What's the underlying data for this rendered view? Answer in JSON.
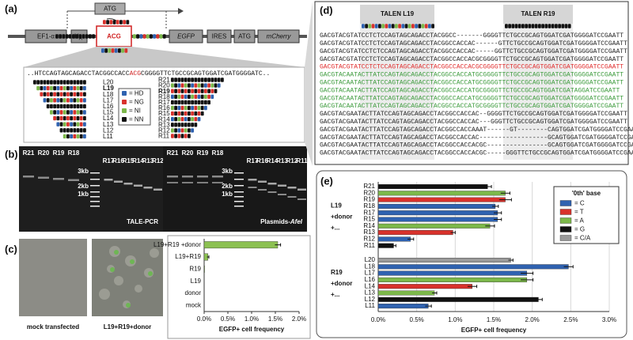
{
  "panel_a": {
    "label": "(a)",
    "construct": {
      "atg_top": "ATG",
      "ef1a": "EF1-α",
      "ha_h": "H",
      "ha_a": "A",
      "acg": "ACG",
      "egfp": "EGFP",
      "ires": "IRES",
      "atg": "ATG",
      "mcherry": "mCherry"
    },
    "sequence": {
      "left": "..HTCCAGTAGCAGACCTACGGCCACC",
      "target": "ACG",
      "right": "CGGGGTTCTGCCGCAGTGGATCGATGGGGATC.."
    },
    "legend": [
      "= HD",
      "= NG",
      "= NI",
      "= NN"
    ],
    "left_tales": [
      "L20",
      "L19",
      "L18",
      "L17",
      "L16",
      "L15",
      "L14",
      "L13",
      "L12",
      "L11"
    ],
    "right_tales": [
      "R21",
      "R20",
      "R19",
      "R18",
      "R17",
      "R16",
      "R15",
      "R14",
      "R13",
      "R12",
      "R11"
    ]
  },
  "panel_b": {
    "label": "(b)",
    "gels": [
      {
        "lanes_left": [
          "R21",
          "R20",
          "R19",
          "R18"
        ],
        "lanes_right": [
          "R17",
          "R16",
          "R15",
          "R14",
          "R13",
          "R12"
        ],
        "ladder": [
          "3kb",
          "2kb",
          "1kb"
        ],
        "title": "TALE-PCR"
      },
      {
        "lanes_left": [
          "R21",
          "R20",
          "R19",
          "R18"
        ],
        "lanes_right": [
          "R17",
          "R16",
          "R14",
          "R13",
          "R12",
          "R11"
        ],
        "ladder": [
          "3kb",
          "2kb",
          "1kb"
        ],
        "title": "Plasmids-",
        "title_italic": "AfeI"
      }
    ]
  },
  "panel_c": {
    "label": "(c)",
    "images": [
      "mock transfected",
      "L19+R19+donor"
    ]
  },
  "panel_d": {
    "label": "(d)",
    "talens": [
      "TALEN L19",
      "TALEN R19"
    ],
    "sequences": [
      {
        "text": "GACGTACGTATCCTCTCCAGTAGCAGACCTACGGCC-------GGGGTTCTGCCGCAGTGGATCGATGGGGATCCGAATT",
        "color": "#222222"
      },
      {
        "text": "GACGTACGTATCCTCTCCAGTAGCAGACCTACGGCCACCAC------GTTCTGCCGCAGTGGATCGATGGGGATCCGAATT",
        "color": "#222222"
      },
      {
        "text": "GACGTACGTATCCTCTCCAGTAGCAGACCTACGGCCACCAC-----GGTTCTGCCGCAGTGGATCGATGGGGATCCGAATT",
        "color": "#222222"
      },
      {
        "text": "GACGTACGTATCCTCTCCAGTAGCAGACCTACGGCCACCACGCGGGGTTCTGCCGCAGTGGATCGATGGGGATCCGAATT",
        "color": "#222222"
      },
      {
        "text": "GACGTACGTATCCTCTCCAGTAGCAGACCTACGGCCACCACGCGGGGTTCTGCCGCAGTGGATCGATGGGGATCCGAATT",
        "color": "#e02a2a"
      },
      {
        "text": "GACGTACAATACTTATCCAGTAGCAGACCTACGGCCACCATGCGGGGTTCTGCCGCAGTGGATCGATGGGGATCCGAATT",
        "color": "#3a9a3a"
      },
      {
        "text": "GACGTACAATACTTATCCAGTAGCAGACCTACGGCCACCATGCGGGGTTCTGCCGCAGTGGATCGATGGGGATCCGAATT",
        "color": "#3a9a3a"
      },
      {
        "text": "GACGTACAATACTTATCCAGTAGCAGACCTACGGCCACCATGCGGGGTTCTGCCGCAGTGGATCGATAGGATCCGAATT",
        "color": "#3a9a3a"
      },
      {
        "text": "GACGTACAATACTTATCCAGTAGCAGACCTACGGCCACCATGCGGGGTTCTGCCGCAGTGGATCGATGGGGATCCGAATT",
        "color": "#3a9a3a"
      },
      {
        "text": "GACGTACAATACTTATCCAGTAGCAGACCTACGGCCACCATGCGGGGTTCTGCCGCAGTGGATCGATGGGGATCCGAATT",
        "color": "#3a9a3a"
      },
      {
        "text": "GACGTACGAATACTTATCCAGTAGCAGACCTACGGCCACCAC--GGGGTTCTGCCGCAGTGGATCGATGGGGATCCGAATT",
        "color": "#222222"
      },
      {
        "text": "GACGTACGAATACTTATCCAGTAGCAGACCTACGGCCACCAC---GGGTTCTGCCGCAGTGGATCGATGGGGATCCGAATT",
        "color": "#222222"
      },
      {
        "text": "GACGTACGAATACTTATCCAGTAGCAGACCTACGGCCACCAAAT------GT--------CAGTGGATCGATGGGGATCCGAATT",
        "color": "#222222"
      },
      {
        "text": "GACGTACGAATACTTATCCAGTAGCAGACCTACGGCCACCAC------------------GCAGTGGATCGATGGGGATCCGAATT",
        "color": "#222222"
      },
      {
        "text": "GACGTACGAATACTTATCCAGTAGCAGACCTACGGCCACCACGC----------------GCAGTGGATCGATGGGGATCCGAATT",
        "color": "#222222"
      },
      {
        "text": "GACGTACGAATACTTATCCAGTAGCAGACCTACGGCCACCACGC-----GGGTTCTGCCGCAGTGGATCGATGGGGATCCGAATT",
        "color": "#222222"
      }
    ]
  },
  "panel_e": {
    "label": "(e)"
  },
  "chart_data": [
    {
      "type": "bar",
      "xlabel": "EGFP+ cell frequency",
      "color": "#8cc152",
      "grid": false,
      "categories": [
        "L19+R19 +donor",
        "L19+R19",
        "R19",
        "L19",
        "donor",
        "mock"
      ],
      "values": [
        1.55,
        0.08,
        0.01,
        0,
        0,
        0
      ],
      "errors": [
        0.06,
        0.02,
        null,
        null,
        null,
        null
      ],
      "xlim": [
        0,
        2
      ],
      "xticks": [
        {
          "value": 0,
          "label": "0.0%"
        },
        {
          "value": 0.5,
          "label": "0.5%"
        },
        {
          "value": 1,
          "label": "1.0%"
        },
        {
          "value": 1.5,
          "label": "1.5%"
        },
        {
          "value": 2,
          "label": "2.0%"
        }
      ]
    },
    {
      "type": "bar",
      "xlabel": "EGFP+ cell frequency",
      "grid": true,
      "legend": {
        "title": "'0th' base",
        "entries": [
          {
            "label": "= C",
            "color": "#2f62b0"
          },
          {
            "label": "= T",
            "color": "#d8322c"
          },
          {
            "label": "= A",
            "color": "#7cb84a"
          },
          {
            "label": "= G",
            "color": "#111111"
          },
          {
            "label": "= C/A",
            "color": "#9a9a9a"
          }
        ]
      },
      "groups": [
        {
          "labels": [
            "L19",
            "+donor",
            "+..."
          ],
          "categories": [
            "R21",
            "R20",
            "R19",
            "R18",
            "R17",
            "R15",
            "R14",
            "R13",
            "R12",
            "R11"
          ],
          "values": [
            1.42,
            1.65,
            1.65,
            1.52,
            1.55,
            1.55,
            1.45,
            0.97,
            0.42,
            0.2
          ],
          "errors": [
            0.05,
            0.06,
            0.08,
            0.04,
            0.05,
            0.05,
            0.06,
            0.03,
            0.04,
            0.03
          ],
          "colors": [
            "#111111",
            "#7cb84a",
            "#d8322c",
            "#2f62b0",
            "#2f62b0",
            "#2f62b0",
            "#7cb84a",
            "#d8322c",
            "#2f62b0",
            "#111111"
          ]
        },
        {
          "labels": [
            "R19",
            "+donor",
            "+..."
          ],
          "categories": [
            "L20",
            "L18",
            "L17",
            "L16",
            "L14",
            "L13",
            "L12",
            "L11"
          ],
          "values": [
            1.72,
            2.47,
            1.93,
            1.93,
            1.22,
            0.73,
            2.08,
            0.65
          ],
          "errors": [
            0.03,
            0.06,
            0.08,
            0.08,
            0.06,
            0.03,
            0.05,
            0.04
          ],
          "colors": [
            "#9a9a9a",
            "#2f62b0",
            "#2f62b0",
            "#7cb84a",
            "#d8322c",
            "#7cb84a",
            "#111111",
            "#2f62b0"
          ]
        }
      ],
      "xlim": [
        0,
        3
      ],
      "xticks": [
        {
          "value": 0,
          "label": "0.0%"
        },
        {
          "value": 0.5,
          "label": "0.5%"
        },
        {
          "value": 1,
          "label": "1.0%"
        },
        {
          "value": 1.5,
          "label": "1.5%"
        },
        {
          "value": 2,
          "label": "2.0%"
        },
        {
          "value": 2.5,
          "label": "2.5%"
        },
        {
          "value": 3,
          "label": "3.0%"
        }
      ]
    }
  ]
}
